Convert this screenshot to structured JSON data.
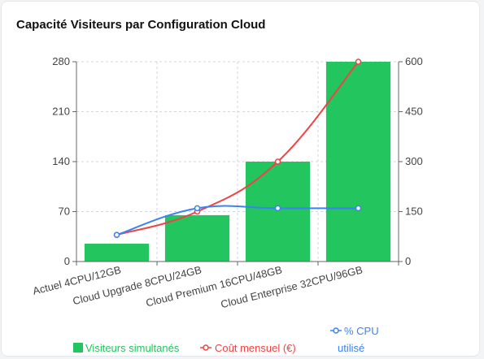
{
  "chart_data": {
    "type": "bar",
    "title": "Capacité Visiteurs par Configuration Cloud",
    "categories": [
      "Actuel 4CPU/12GB",
      "Cloud Upgrade 8CPU/24GB",
      "Cloud Premium 16CPU/48GB",
      "Cloud Enterprise 32CPU/96GB"
    ],
    "y_left": {
      "min": 0,
      "max": 280,
      "ticks": [
        0,
        70,
        140,
        210,
        280
      ]
    },
    "y_right": {
      "min": 0,
      "max": 600,
      "ticks": [
        0,
        150,
        300,
        450,
        600
      ]
    },
    "grid": true,
    "legend_position": "bottom",
    "series": [
      {
        "name": "Visiteurs simultanés",
        "type": "bar",
        "axis": "left",
        "values": [
          25,
          65,
          140,
          280
        ],
        "color": "#22c55e"
      },
      {
        "name": "Coût mensuel (€)",
        "type": "line",
        "axis": "right",
        "values": [
          80,
          150,
          300,
          600
        ],
        "color": "#ef4444"
      },
      {
        "name": "% CPU utilisé",
        "type": "line",
        "axis": "right",
        "values": [
          80,
          160,
          160,
          160
        ],
        "color": "#3b82f6"
      }
    ]
  }
}
